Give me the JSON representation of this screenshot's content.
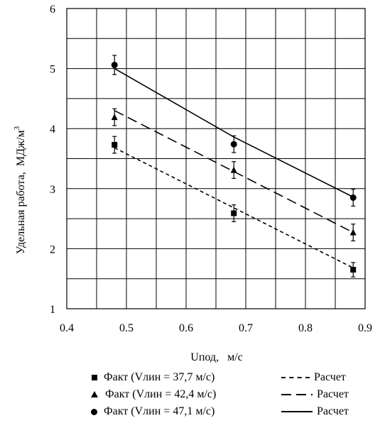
{
  "chart_data": {
    "type": "scatter",
    "xlabel": "Uпод,   м/с",
    "ylabel": "Удельная работа,  МДж/м",
    "ylabel_sup": "3",
    "xlim": [
      0.4,
      0.9
    ],
    "ylim": [
      1,
      6
    ],
    "xticks": [
      "0.4",
      "0.5",
      "0.6",
      "0.7",
      "0.8",
      "0.9"
    ],
    "yticks": [
      "1",
      "2",
      "3",
      "4",
      "5",
      "6"
    ],
    "grid": true,
    "legend_position": "bottom",
    "series": [
      {
        "name": "Факт (Vлин = 37,7 м/с)",
        "marker": "square",
        "x": [
          0.48,
          0.68,
          0.88
        ],
        "y": [
          3.73,
          2.59,
          1.65
        ],
        "err": [
          0.14,
          0.14,
          0.12
        ]
      },
      {
        "name": "Факт (Vлин = 42,4 м/с)",
        "marker": "triangle",
        "x": [
          0.48,
          0.68,
          0.88
        ],
        "y": [
          4.19,
          3.31,
          2.27
        ],
        "err": [
          0.14,
          0.14,
          0.14
        ]
      },
      {
        "name": "Факт (Vлин = 47,1 м/с)",
        "marker": "circle",
        "x": [
          0.48,
          0.68,
          0.88
        ],
        "y": [
          5.06,
          3.74,
          2.85
        ],
        "err": [
          0.16,
          0.14,
          0.14
        ]
      },
      {
        "name": "Расчет",
        "style": "short-dash",
        "x": [
          0.48,
          0.88
        ],
        "y": [
          3.68,
          1.68
        ]
      },
      {
        "name": "Расчет",
        "style": "long-dash",
        "x": [
          0.48,
          0.88
        ],
        "y": [
          4.3,
          2.27
        ]
      },
      {
        "name": "Расчет",
        "style": "solid",
        "x": [
          0.48,
          0.68,
          0.88
        ],
        "y": [
          5.0,
          3.86,
          2.86
        ]
      }
    ]
  }
}
